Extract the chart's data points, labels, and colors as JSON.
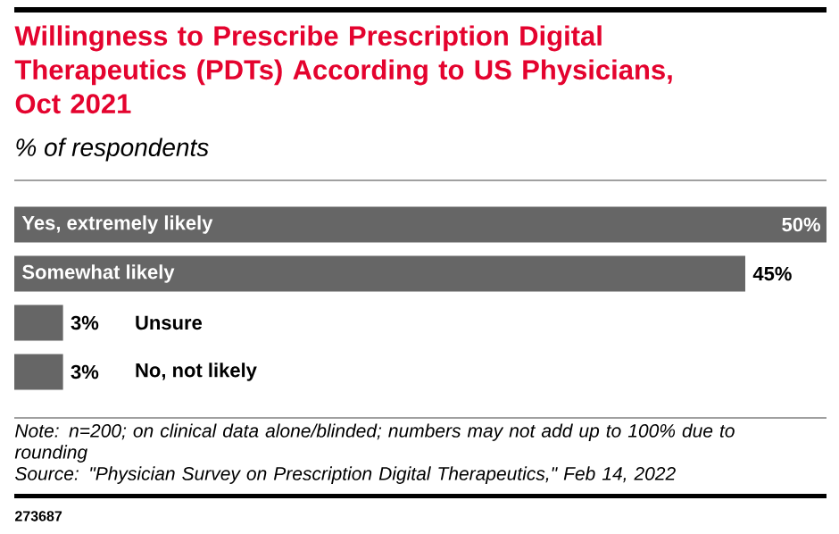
{
  "chart_data": {
    "type": "bar",
    "orientation": "horizontal",
    "title": "Willingness to Prescribe Prescription Digital Therapeutics (PDTs) According to US Physicians, Oct 2021",
    "subtitle": "% of respondents",
    "categories": [
      "Yes, extremely likely",
      "Somewhat likely",
      "Unsure",
      "No, not likely"
    ],
    "values": [
      50,
      45,
      3,
      3
    ],
    "value_labels": [
      "50%",
      "45%",
      "3%",
      "3%"
    ],
    "color": "#666666",
    "annotations": [
      "Note: n=200; on clinical data alone/blinded; numbers may not add up to 100% due to rounding",
      "Source: \"Physician Survey on Prescription Digital Therapeutics,\" Feb 14, 2022",
      "273687"
    ]
  }
}
